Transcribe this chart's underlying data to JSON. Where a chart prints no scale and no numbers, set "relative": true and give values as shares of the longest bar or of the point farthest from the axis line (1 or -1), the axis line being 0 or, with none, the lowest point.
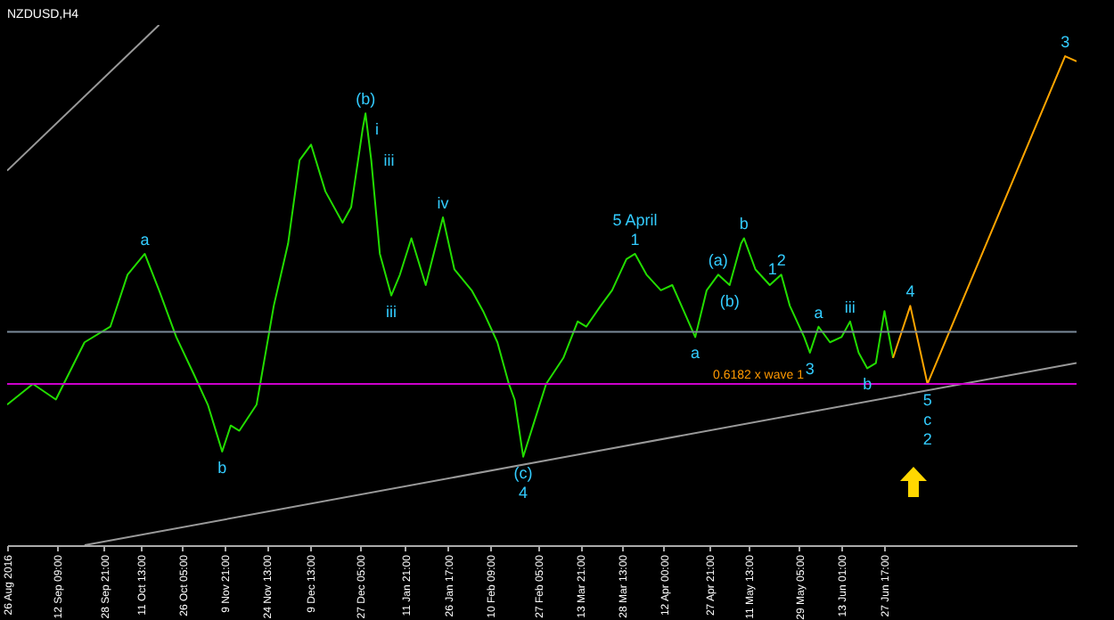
{
  "chart_data": {
    "type": "line",
    "title": "NZDUSD,H4",
    "relative": true,
    "xlim": [
      "2016-08-26",
      "2017-09-03"
    ],
    "xticks": [
      {
        "value": "2016-08-26T00:00",
        "label": "26 Aug 2016"
      },
      {
        "value": "2016-09-12T09:00",
        "label": "12 Sep 09:00"
      },
      {
        "value": "2016-09-28T21:00",
        "label": "28 Sep 21:00"
      },
      {
        "value": "2016-10-11T13:00",
        "label": "11 Oct 13:00"
      },
      {
        "value": "2016-10-26T05:00",
        "label": "26 Oct 05:00"
      },
      {
        "value": "2016-11-09T21:00",
        "label": "9 Nov 21:00"
      },
      {
        "value": "2016-11-24T13:00",
        "label": "24 Nov 13:00"
      },
      {
        "value": "2016-12-09T13:00",
        "label": "9 Dec 13:00"
      },
      {
        "value": "2016-12-27T05:00",
        "label": "27 Dec 05:00"
      },
      {
        "value": "2017-01-11T21:00",
        "label": "11 Jan 21:00"
      },
      {
        "value": "2017-01-26T17:00",
        "label": "26 Jan 17:00"
      },
      {
        "value": "2017-02-10T09:00",
        "label": "10 Feb 09:00"
      },
      {
        "value": "2017-02-27T05:00",
        "label": "27 Feb 05:00"
      },
      {
        "value": "2017-03-13T21:00",
        "label": "13 Mar 21:00"
      },
      {
        "value": "2017-03-28T13:00",
        "label": "28 Mar 13:00"
      },
      {
        "value": "2017-04-12T00:00",
        "label": "12 Apr 00:00"
      },
      {
        "value": "2017-04-27T21:00",
        "label": "27 Apr 21:00"
      },
      {
        "value": "2017-05-11T13:00",
        "label": "11 May 13:00"
      },
      {
        "value": "2017-05-29T05:00",
        "label": "29 May 05:00"
      },
      {
        "value": "2017-06-13T01:00",
        "label": "13 Jun 01:00"
      },
      {
        "value": "2017-06-27T17:00",
        "label": "27 Jun 17:00"
      }
    ],
    "series": [
      {
        "color": "#22dd00",
        "x": [
          "2016-08-26",
          "2016-09-04",
          "2016-09-12",
          "2016-09-22",
          "2016-10-01",
          "2016-10-07",
          "2016-10-13",
          "2016-10-18",
          "2016-10-24",
          "2016-10-30",
          "2016-11-04",
          "2016-11-09",
          "2016-11-12",
          "2016-11-15",
          "2016-11-21",
          "2016-11-27",
          "2016-12-02",
          "2016-12-06",
          "2016-12-10",
          "2016-12-15",
          "2016-12-21",
          "2016-12-24",
          "2016-12-28",
          "2016-12-29",
          "2016-12-31",
          "2017-01-03",
          "2017-01-07",
          "2017-01-10",
          "2017-01-14",
          "2017-01-19",
          "2017-01-25",
          "2017-01-29",
          "2017-02-04",
          "2017-02-08",
          "2017-02-13",
          "2017-02-17",
          "2017-02-19",
          "2017-02-22",
          "2017-02-26",
          "2017-03-02",
          "2017-03-08",
          "2017-03-13",
          "2017-03-16",
          "2017-03-21",
          "2017-03-25",
          "2017-03-30",
          "2017-04-02",
          "2017-04-06",
          "2017-04-11",
          "2017-04-15",
          "2017-04-19",
          "2017-04-23",
          "2017-04-27",
          "2017-05-01",
          "2017-05-05",
          "2017-05-09",
          "2017-05-10",
          "2017-05-14",
          "2017-05-19",
          "2017-05-23",
          "2017-05-26",
          "2017-05-31",
          "2017-06-02",
          "2017-06-05",
          "2017-06-09",
          "2017-06-13",
          "2017-06-16",
          "2017-06-19",
          "2017-06-22",
          "2017-06-25",
          "2017-06-28",
          "2017-07-01"
        ],
        "values": [
          0.27,
          0.31,
          0.28,
          0.39,
          0.42,
          0.52,
          0.56,
          0.49,
          0.4,
          0.33,
          0.27,
          0.18,
          0.23,
          0.22,
          0.27,
          0.46,
          0.58,
          0.74,
          0.77,
          0.68,
          0.62,
          0.65,
          0.8,
          0.83,
          0.74,
          0.56,
          0.48,
          0.52,
          0.59,
          0.5,
          0.63,
          0.53,
          0.49,
          0.45,
          0.39,
          0.31,
          0.28,
          0.17,
          0.24,
          0.31,
          0.36,
          0.43,
          0.42,
          0.46,
          0.49,
          0.55,
          0.56,
          0.52,
          0.49,
          0.5,
          0.45,
          0.4,
          0.49,
          0.52,
          0.5,
          0.58,
          0.59,
          0.53,
          0.5,
          0.52,
          0.46,
          0.4,
          0.37,
          0.42,
          0.39,
          0.4,
          0.43,
          0.37,
          0.34,
          0.35,
          0.45,
          0.36
        ]
      },
      {
        "color": "#ffa500",
        "x": [
          "2017-07-01",
          "2017-07-07",
          "2017-07-13",
          "2017-08-30",
          "2017-09-03"
        ],
        "values": [
          0.36,
          0.46,
          0.31,
          0.94,
          0.93
        ]
      },
      {
        "color": "#999999",
        "x": [
          "2016-09-22",
          "2017-09-03"
        ],
        "values": [
          0.0,
          0.35
        ]
      },
      {
        "color": "#999999",
        "x": [
          "2016-08-26",
          "2016-10-18"
        ],
        "values": [
          0.72,
          1.0
        ]
      }
    ],
    "ref_lines": [
      {
        "axis": "y",
        "value": 0.41,
        "color": "#7a8a99"
      },
      {
        "axis": "y",
        "value": 0.31,
        "color": "#cc00cc",
        "label": "0.6182 x wave 1"
      }
    ],
    "annotations": [
      {
        "text": "(b)",
        "x": "2016-12-29",
        "y": 0.83
      },
      {
        "text": "iii",
        "x": "2016-12-31",
        "y": 0.74
      },
      {
        "text": "i",
        "x": "2016-12-28",
        "y": 0.8
      },
      {
        "text": "iii",
        "x": "2017-01-07",
        "y": 0.48
      },
      {
        "text": "iv",
        "x": "2017-01-25",
        "y": 0.63
      },
      {
        "text": "a",
        "x": "2016-10-13",
        "y": 0.56
      },
      {
        "text": "b",
        "x": "2016-11-09",
        "y": 0.18
      },
      {
        "text": "(c)",
        "x": "2017-02-22",
        "y": 0.17
      },
      {
        "text": "4",
        "x": "2017-02-22",
        "y": 0.17
      },
      {
        "text": "1",
        "x": "2017-04-02",
        "y": 0.56
      },
      {
        "text": "5 April",
        "x": "2017-04-02",
        "y": 0.56
      },
      {
        "text": "(a)",
        "x": "2017-05-01",
        "y": 0.52
      },
      {
        "text": "(b)",
        "x": "2017-05-05",
        "y": 0.5
      },
      {
        "text": "a",
        "x": "2017-04-23",
        "y": 0.4
      },
      {
        "text": "b",
        "x": "2017-05-10",
        "y": 0.59
      },
      {
        "text": "1",
        "x": "2017-05-14",
        "y": 0.53
      },
      {
        "text": "2",
        "x": "2017-05-23",
        "y": 0.52
      },
      {
        "text": "a",
        "x": "2017-06-05",
        "y": 0.42
      },
      {
        "text": "iii",
        "x": "2017-06-16",
        "y": 0.43
      },
      {
        "text": "3",
        "x": "2017-06-02",
        "y": 0.37
      },
      {
        "text": "b",
        "x": "2017-06-22",
        "y": 0.34
      },
      {
        "text": "4",
        "x": "2017-07-07",
        "y": 0.46
      },
      {
        "text": "5",
        "x": "2017-07-13",
        "y": 0.31
      },
      {
        "text": "c",
        "x": "2017-07-13",
        "y": 0.31
      },
      {
        "text": "2",
        "x": "2017-07-13",
        "y": 0.31
      },
      {
        "text": "3",
        "x": "2017-08-30",
        "y": 0.94
      }
    ]
  }
}
